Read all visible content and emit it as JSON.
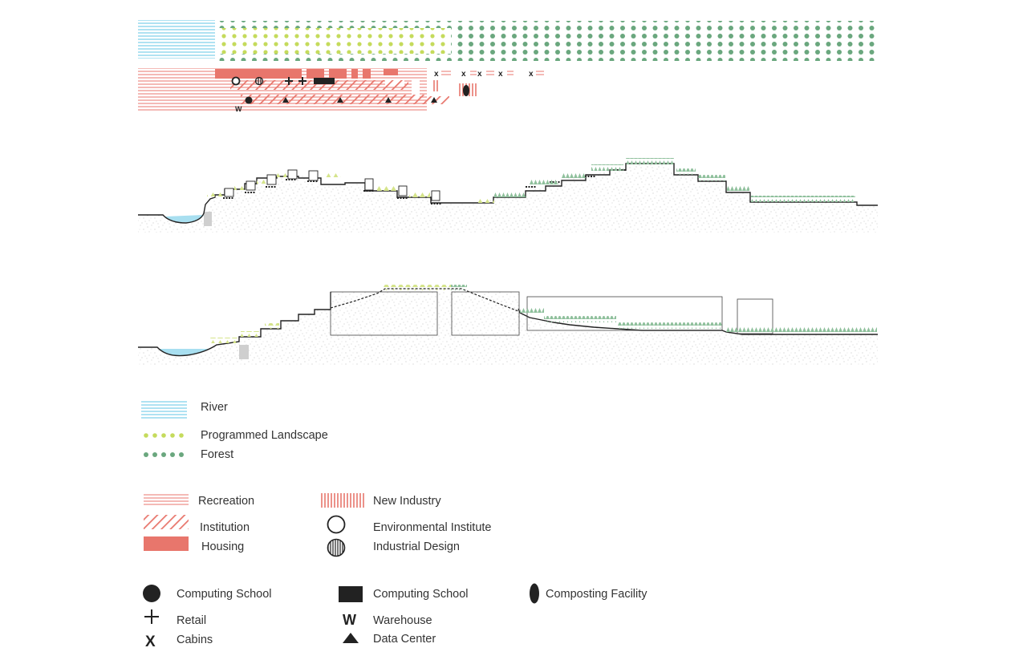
{
  "colors": {
    "river": "#5fc6e6",
    "programmed_landscape": "#c5db5c",
    "forest": "#6aa77e",
    "program": "#e8766c",
    "ink": "#222222"
  },
  "legend": {
    "river": "River",
    "programmed_landscape": "Programmed Landscape",
    "forest": "Forest",
    "recreation": "Recreation",
    "institution": "Institution",
    "housing": "Housing",
    "new_industry": "New Industry",
    "environmental_institute": "Environmental Institute",
    "industrial_design": "Industrial Design",
    "computing_school_circle": "Computing School",
    "computing_school_square": "Computing School",
    "composting_facility": "Composting Facility",
    "retail": "Retail",
    "warehouse": "Warehouse",
    "cabins": "Cabins",
    "data_center": "Data Center"
  },
  "icons": {
    "retail": "plus-icon",
    "warehouse_glyph": "W",
    "cabins_glyph": "X",
    "data_center": "triangle-icon"
  }
}
